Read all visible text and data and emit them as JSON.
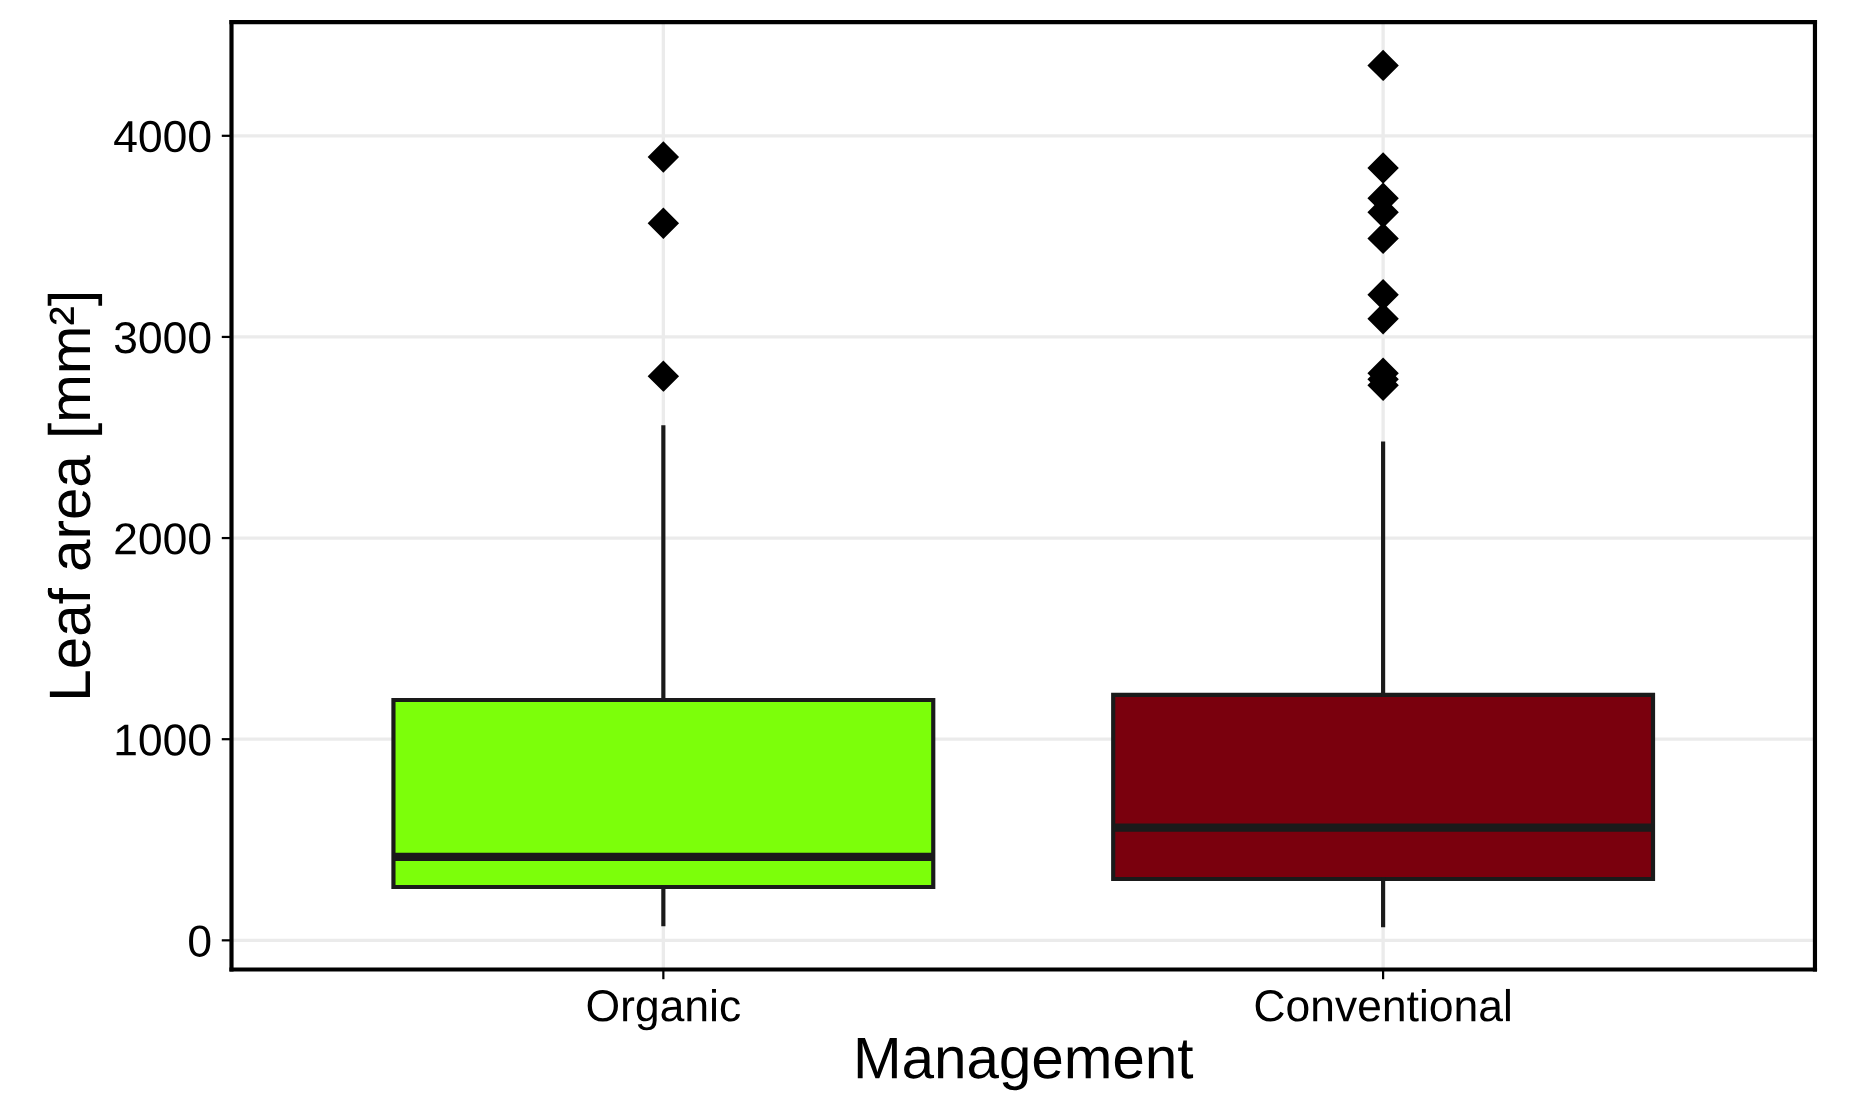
{
  "chart_data": {
    "type": "box",
    "xlabel": "Management",
    "ylabel": "Leaf area [mm²]",
    "categories": [
      "Organic",
      "Conventional"
    ],
    "colors": [
      "#7cff0a",
      "#7a000d"
    ],
    "boxes": [
      {
        "low": 80,
        "q1": 265,
        "median": 415,
        "q3": 1195,
        "high": 2550,
        "outliers": [
          3895,
          3565,
          2805
        ]
      },
      {
        "low": 75,
        "q1": 305,
        "median": 560,
        "q3": 1220,
        "high": 2470,
        "outliers": [
          4350,
          3840,
          3690,
          3620,
          3490,
          3210,
          3090,
          2820,
          2790,
          2760
        ]
      }
    ],
    "ylim": [
      -145,
      4565
    ],
    "yticks": [
      0,
      1000,
      2000,
      3000,
      4000
    ],
    "grid": true,
    "marker": "diamond"
  }
}
